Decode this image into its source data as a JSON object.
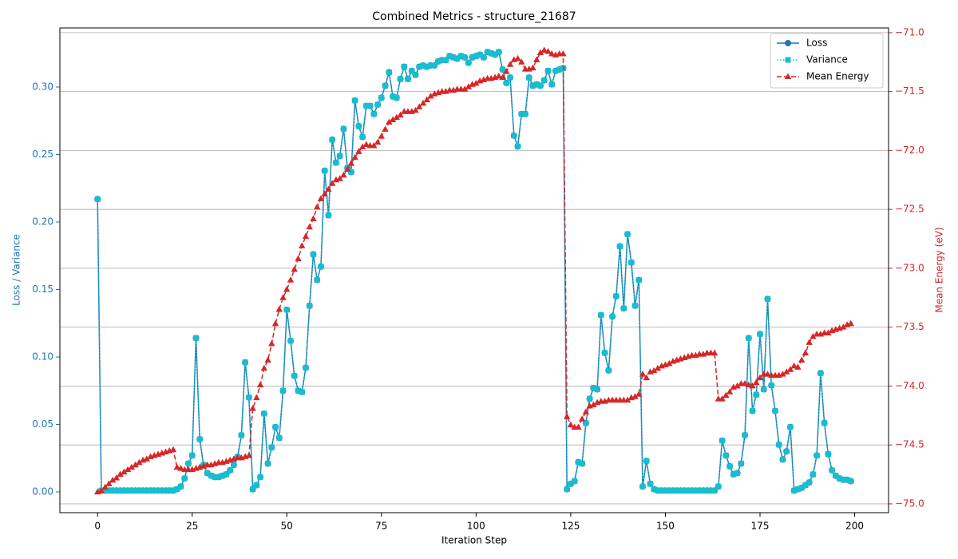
{
  "chart_data": {
    "type": "line",
    "title": "Combined Metrics - structure_21687",
    "xlabel": "Iteration Step",
    "ylabel": "Loss / Variance",
    "y2label": "Mean Energy (eV)",
    "xlim": [
      -9.95,
      208.95
    ],
    "ylim": [
      -0.0154,
      0.3438
    ],
    "y2lim": [
      -75.075,
      -70.96
    ],
    "xticks": [
      0,
      25,
      50,
      75,
      100,
      125,
      150,
      175,
      200
    ],
    "yticks": [
      {
        "value": 0,
        "label": "0.00"
      },
      0.05,
      {
        "value": 0.1,
        "label": "0.10"
      },
      0.15,
      {
        "value": 0.2,
        "label": "0.20"
      },
      0.25,
      {
        "value": 0.3,
        "label": "0.30"
      }
    ],
    "y2ticks": [
      {
        "value": -75,
        "label": "−75.0"
      },
      {
        "value": -74.5,
        "label": "−74.5"
      },
      {
        "value": -74,
        "label": "−74.0"
      },
      {
        "value": -73.5,
        "label": "−73.5"
      },
      {
        "value": -73,
        "label": "−73.0"
      },
      {
        "value": -72.5,
        "label": "−72.5"
      },
      {
        "value": -72,
        "label": "−72.0"
      },
      {
        "value": -71.5,
        "label": "−71.5"
      },
      {
        "value": -71,
        "label": "−71.0"
      }
    ],
    "ycolor": "#1f77b4",
    "y2color": "#d62728",
    "grid": "y2",
    "legend": "upper right",
    "x": [
      0,
      1,
      2,
      3,
      4,
      5,
      6,
      7,
      8,
      9,
      10,
      11,
      12,
      13,
      14,
      15,
      16,
      17,
      18,
      19,
      20,
      21,
      22,
      23,
      24,
      25,
      26,
      27,
      28,
      29,
      30,
      31,
      32,
      33,
      34,
      35,
      36,
      37,
      38,
      39,
      40,
      41,
      42,
      43,
      44,
      45,
      46,
      47,
      48,
      49,
      50,
      51,
      52,
      53,
      54,
      55,
      56,
      57,
      58,
      59,
      60,
      61,
      62,
      63,
      64,
      65,
      66,
      67,
      68,
      69,
      70,
      71,
      72,
      73,
      74,
      75,
      76,
      77,
      78,
      79,
      80,
      81,
      82,
      83,
      84,
      85,
      86,
      87,
      88,
      89,
      90,
      91,
      92,
      93,
      94,
      95,
      96,
      97,
      98,
      99,
      100,
      101,
      102,
      103,
      104,
      105,
      106,
      107,
      108,
      109,
      110,
      111,
      112,
      113,
      114,
      115,
      116,
      117,
      118,
      119,
      120,
      121,
      122,
      123,
      124,
      125,
      126,
      127,
      128,
      129,
      130,
      131,
      132,
      133,
      134,
      135,
      136,
      137,
      138,
      139,
      140,
      141,
      142,
      143,
      144,
      145,
      146,
      147,
      148,
      149,
      150,
      151,
      152,
      153,
      154,
      155,
      156,
      157,
      158,
      159,
      160,
      161,
      162,
      163,
      164,
      165,
      166,
      167,
      168,
      169,
      170,
      171,
      172,
      173,
      174,
      175,
      176,
      177,
      178,
      179,
      180,
      181,
      182,
      183,
      184,
      185,
      186,
      187,
      188,
      189,
      190,
      191,
      192,
      193,
      194,
      195,
      196,
      197,
      198,
      199
    ],
    "series": [
      {
        "name": "Loss",
        "color": "#1f77b4",
        "marker": "circle",
        "linestyle": "solid",
        "axis": "y",
        "values": [
          0.217,
          0.001,
          0.001,
          0.001,
          0.001,
          0.001,
          0.001,
          0.001,
          0.001,
          0.001,
          0.001,
          0.001,
          0.001,
          0.001,
          0.001,
          0.001,
          0.001,
          0.001,
          0.001,
          0.001,
          0.001,
          0.002,
          0.004,
          0.01,
          0.021,
          0.027,
          0.114,
          0.039,
          0.02,
          0.014,
          0.012,
          0.011,
          0.011,
          0.012,
          0.013,
          0.016,
          0.02,
          0.026,
          0.042,
          0.096,
          0.07,
          0.002,
          0.005,
          0.011,
          0.058,
          0.021,
          0.033,
          0.048,
          0.04,
          0.075,
          0.135,
          0.112,
          0.086,
          0.075,
          0.074,
          0.092,
          0.138,
          0.176,
          0.157,
          0.167,
          0.238,
          0.205,
          0.261,
          0.244,
          0.249,
          0.269,
          0.24,
          0.237,
          0.29,
          0.271,
          0.263,
          0.286,
          0.286,
          0.28,
          0.287,
          0.292,
          0.301,
          0.311,
          0.293,
          0.292,
          0.306,
          0.315,
          0.306,
          0.312,
          0.309,
          0.315,
          0.316,
          0.315,
          0.316,
          0.316,
          0.319,
          0.32,
          0.32,
          0.323,
          0.322,
          0.321,
          0.323,
          0.322,
          0.318,
          0.322,
          0.323,
          0.324,
          0.322,
          0.326,
          0.325,
          0.324,
          0.326,
          0.313,
          0.303,
          0.307,
          0.264,
          0.256,
          0.28,
          0.28,
          0.307,
          0.301,
          0.302,
          0.301,
          0.305,
          0.312,
          0.302,
          0.312,
          0.313,
          0.314,
          0.002,
          0.006,
          0.008,
          0.022,
          0.021,
          0.051,
          0.069,
          0.077,
          0.076,
          0.131,
          0.103,
          0.09,
          0.13,
          0.145,
          0.182,
          0.136,
          0.191,
          0.17,
          0.138,
          0.157,
          0.004,
          0.023,
          0.006,
          0.002,
          0.001,
          0.001,
          0.001,
          0.001,
          0.001,
          0.001,
          0.001,
          0.001,
          0.001,
          0.001,
          0.001,
          0.001,
          0.001,
          0.001,
          0.001,
          0.001,
          0.004,
          0.038,
          0.027,
          0.019,
          0.013,
          0.014,
          0.021,
          0.042,
          0.114,
          0.06,
          0.072,
          0.117,
          0.076,
          0.143,
          0.079,
          0.06,
          0.035,
          0.024,
          0.03,
          0.048,
          0.001,
          0.002,
          0.003,
          0.005,
          0.007,
          0.013,
          0.027,
          0.088,
          0.051,
          0.028,
          0.016,
          0.012,
          0.01,
          0.009,
          0.009,
          0.008
        ]
      },
      {
        "name": "Variance",
        "color": "#17becf",
        "marker": "square",
        "linestyle": "dotted",
        "axis": "y",
        "values": [
          0.217,
          0.001,
          0.001,
          0.001,
          0.001,
          0.001,
          0.001,
          0.001,
          0.001,
          0.001,
          0.001,
          0.001,
          0.001,
          0.001,
          0.001,
          0.001,
          0.001,
          0.001,
          0.001,
          0.001,
          0.001,
          0.002,
          0.004,
          0.01,
          0.021,
          0.027,
          0.114,
          0.039,
          0.02,
          0.014,
          0.012,
          0.011,
          0.011,
          0.012,
          0.013,
          0.016,
          0.02,
          0.026,
          0.042,
          0.096,
          0.07,
          0.002,
          0.005,
          0.011,
          0.058,
          0.021,
          0.033,
          0.048,
          0.04,
          0.075,
          0.135,
          0.112,
          0.086,
          0.075,
          0.074,
          0.092,
          0.138,
          0.176,
          0.157,
          0.167,
          0.238,
          0.205,
          0.261,
          0.244,
          0.249,
          0.269,
          0.24,
          0.237,
          0.29,
          0.271,
          0.263,
          0.286,
          0.286,
          0.28,
          0.287,
          0.292,
          0.301,
          0.311,
          0.293,
          0.292,
          0.306,
          0.315,
          0.306,
          0.312,
          0.309,
          0.315,
          0.316,
          0.315,
          0.316,
          0.316,
          0.319,
          0.32,
          0.32,
          0.323,
          0.322,
          0.321,
          0.323,
          0.322,
          0.318,
          0.322,
          0.323,
          0.324,
          0.322,
          0.326,
          0.325,
          0.324,
          0.326,
          0.313,
          0.303,
          0.307,
          0.264,
          0.256,
          0.28,
          0.28,
          0.307,
          0.301,
          0.302,
          0.301,
          0.305,
          0.312,
          0.302,
          0.312,
          0.313,
          0.314,
          0.002,
          0.006,
          0.008,
          0.022,
          0.021,
          0.051,
          0.069,
          0.077,
          0.076,
          0.131,
          0.103,
          0.09,
          0.13,
          0.145,
          0.182,
          0.136,
          0.191,
          0.17,
          0.138,
          0.157,
          0.004,
          0.023,
          0.006,
          0.002,
          0.001,
          0.001,
          0.001,
          0.001,
          0.001,
          0.001,
          0.001,
          0.001,
          0.001,
          0.001,
          0.001,
          0.001,
          0.001,
          0.001,
          0.001,
          0.001,
          0.004,
          0.038,
          0.027,
          0.019,
          0.013,
          0.014,
          0.021,
          0.042,
          0.114,
          0.06,
          0.072,
          0.117,
          0.076,
          0.143,
          0.079,
          0.06,
          0.035,
          0.024,
          0.03,
          0.048,
          0.001,
          0.002,
          0.003,
          0.005,
          0.007,
          0.013,
          0.027,
          0.088,
          0.051,
          0.028,
          0.016,
          0.012,
          0.01,
          0.009,
          0.009,
          0.008
        ]
      },
      {
        "name": "Mean Energy",
        "color": "#d62728",
        "marker": "triangle",
        "linestyle": "dashed",
        "axis": "y2",
        "values": [
          -74.9,
          -74.89,
          -74.86,
          -74.83,
          -74.8,
          -74.78,
          -74.75,
          -74.73,
          -74.71,
          -74.69,
          -74.67,
          -74.65,
          -74.63,
          -74.62,
          -74.6,
          -74.59,
          -74.58,
          -74.57,
          -74.56,
          -74.55,
          -74.54,
          -74.69,
          -74.7,
          -74.71,
          -74.71,
          -74.71,
          -74.7,
          -74.69,
          -74.68,
          -74.67,
          -74.67,
          -74.66,
          -74.65,
          -74.65,
          -74.64,
          -74.63,
          -74.62,
          -74.61,
          -74.61,
          -74.6,
          -74.59,
          -74.19,
          -74.1,
          -73.99,
          -73.85,
          -73.78,
          -73.64,
          -73.47,
          -73.35,
          -73.25,
          -73.18,
          -73.1,
          -73.01,
          -72.92,
          -72.81,
          -72.73,
          -72.65,
          -72.58,
          -72.48,
          -72.41,
          -72.37,
          -72.33,
          -72.28,
          -72.25,
          -72.24,
          -72.21,
          -72.16,
          -72.11,
          -72.06,
          -72.01,
          -71.97,
          -71.95,
          -71.96,
          -71.96,
          -71.93,
          -71.88,
          -71.82,
          -71.76,
          -71.74,
          -71.72,
          -71.7,
          -71.67,
          -71.67,
          -71.67,
          -71.66,
          -71.63,
          -71.6,
          -71.57,
          -71.54,
          -71.52,
          -71.51,
          -71.5,
          -71.5,
          -71.49,
          -71.49,
          -71.48,
          -71.48,
          -71.48,
          -71.46,
          -71.44,
          -71.43,
          -71.41,
          -71.4,
          -71.39,
          -71.39,
          -71.38,
          -71.37,
          -71.38,
          -71.33,
          -71.27,
          -71.23,
          -71.22,
          -71.25,
          -71.31,
          -71.31,
          -71.3,
          -71.23,
          -71.17,
          -71.15,
          -71.16,
          -71.18,
          -71.19,
          -71.18,
          -71.18,
          -74.26,
          -74.33,
          -74.35,
          -74.35,
          -74.28,
          -74.22,
          -74.17,
          -74.16,
          -74.14,
          -74.13,
          -74.13,
          -74.12,
          -74.12,
          -74.12,
          -74.12,
          -74.12,
          -74.12,
          -74.1,
          -74.09,
          -74.07,
          -73.9,
          -73.93,
          -73.88,
          -73.87,
          -73.85,
          -73.83,
          -73.82,
          -73.81,
          -73.79,
          -73.78,
          -73.77,
          -73.76,
          -73.75,
          -73.74,
          -73.74,
          -73.73,
          -73.73,
          -73.72,
          -73.72,
          -73.72,
          -74.11,
          -74.11,
          -74.08,
          -74.05,
          -74.01,
          -74.0,
          -73.98,
          -73.98,
          -73.99,
          -74.0,
          -73.97,
          -73.93,
          -73.9,
          -73.9,
          -73.91,
          -73.91,
          -73.91,
          -73.9,
          -73.88,
          -73.86,
          -73.83,
          -73.84,
          -73.78,
          -73.72,
          -73.63,
          -73.58,
          -73.56,
          -73.56,
          -73.55,
          -73.55,
          -73.53,
          -73.52,
          -73.51,
          -73.5,
          -73.48,
          -73.47
        ]
      }
    ]
  }
}
